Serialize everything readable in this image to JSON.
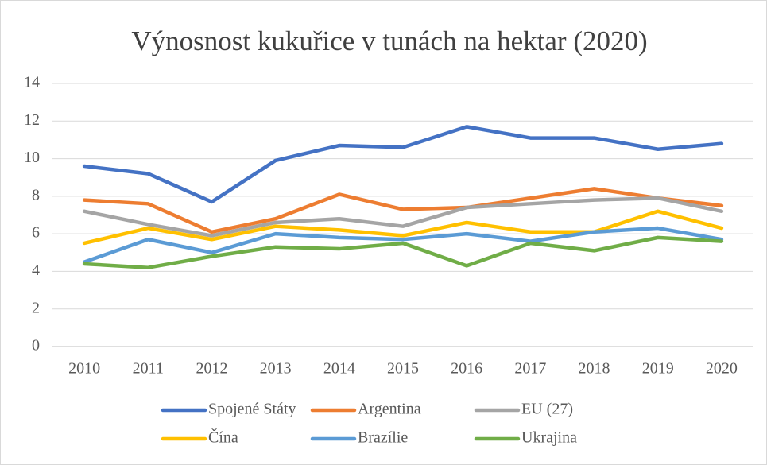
{
  "chart_data": {
    "type": "line",
    "title": "Výnosnost kukuřice v tunách na hektar (2020)",
    "categories": [
      "2010",
      "2011",
      "2012",
      "2013",
      "2014",
      "2015",
      "2016",
      "2017",
      "2018",
      "2019",
      "2020"
    ],
    "series": [
      {
        "name": "Spojené Státy",
        "color": "#4472c4",
        "values": [
          9.6,
          9.2,
          7.7,
          9.9,
          10.7,
          10.6,
          11.7,
          11.1,
          11.1,
          10.5,
          10.8
        ]
      },
      {
        "name": "Argentina",
        "color": "#ed7d31",
        "values": [
          7.8,
          7.6,
          6.1,
          6.8,
          8.1,
          7.3,
          7.4,
          7.9,
          8.4,
          7.9,
          7.5
        ]
      },
      {
        "name": "EU (27)",
        "color": "#a5a5a5",
        "values": [
          7.2,
          6.5,
          5.9,
          6.6,
          6.8,
          6.4,
          7.4,
          7.6,
          7.8,
          7.9,
          7.2
        ]
      },
      {
        "name": "Čína",
        "color": "#ffc000",
        "values": [
          5.5,
          6.3,
          5.7,
          6.4,
          6.2,
          5.9,
          6.6,
          6.1,
          6.1,
          7.2,
          6.3
        ]
      },
      {
        "name": "Brazílie",
        "color": "#5b9bd5",
        "values": [
          4.5,
          5.7,
          5.0,
          6.0,
          5.8,
          5.7,
          6.0,
          5.6,
          6.1,
          6.3,
          5.7
        ]
      },
      {
        "name": "Ukrajina",
        "color": "#70ad47",
        "values": [
          4.4,
          4.2,
          4.8,
          5.3,
          5.2,
          5.5,
          4.3,
          5.5,
          5.1,
          5.8,
          5.6
        ]
      }
    ],
    "ylim": [
      0,
      14
    ],
    "yticks": [
      0,
      2,
      4,
      6,
      8,
      10,
      12,
      14
    ],
    "grid": true
  }
}
